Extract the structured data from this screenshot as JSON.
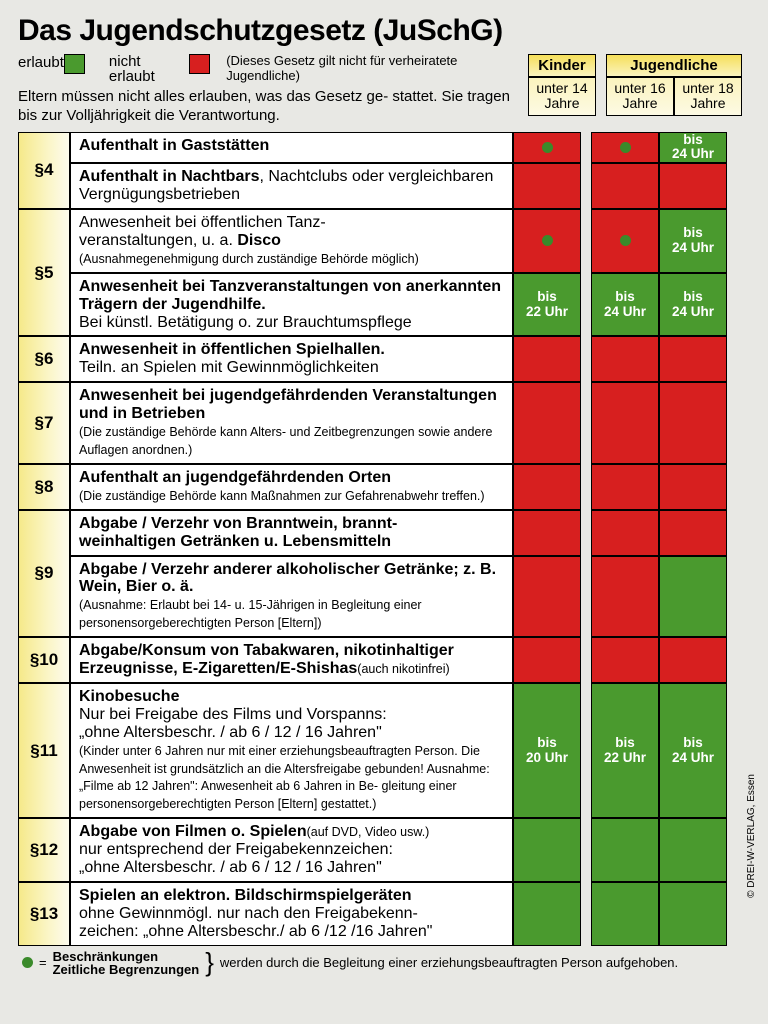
{
  "colors": {
    "allowed": "#4a9a2e",
    "notAllowed": "#d71f1f",
    "yellowHead": "#f5df5a",
    "sectionGrad": "#f5e98a"
  },
  "title": "Das Jugendschutzgesetz (JuSchG)",
  "legend": {
    "allowed": "erlaubt",
    "notAllowed": "nicht erlaubt",
    "note": "(Dieses Gesetz gilt nicht für verheiratete Jugendliche)"
  },
  "introNote": "Eltern müssen nicht alles erlauben, was das Gesetz ge- stattet. Sie tragen bis zur Volljährigkeit die Verantwortung.",
  "header": {
    "kinder": "Kinder",
    "jugendliche": "Jugendliche",
    "u14": "unter 14 Jahre",
    "u16": "unter 16 Jahre",
    "u18": "unter 18 Jahre"
  },
  "footer": {
    "dotEq": "● =",
    "l1": "Beschränkungen",
    "l2": "Zeitliche Begrenzungen",
    "rest": "werden durch die Begleitung einer erziehungsbeauftragten Person aufgehoben."
  },
  "copyright": "© DREI-W-VERLAG, Essen",
  "rows": [
    {
      "section": "§4",
      "span": 2,
      "items": [
        {
          "html": "<b>Aufenthalt in Gaststätten</b>",
          "c": [
            "dot",
            "dot",
            "g:bis 24 Uhr"
          ]
        },
        {
          "html": "<b>Aufenthalt in Nachtbars</b>, Nachtclubs oder vergleichbaren Vergnügungsbetrieben",
          "c": [
            "r",
            "r",
            "r"
          ]
        }
      ]
    },
    {
      "section": "§5",
      "span": 2,
      "items": [
        {
          "html": "Anwesenheit bei öffentlichen Tanz-<br>veranstaltungen, u. a. <b>Disco</b><br><span class='small'>(Ausnahmegenehmigung durch zuständige Behörde möglich)</span>",
          "c": [
            "dot",
            "dot",
            "g:bis 24 Uhr"
          ]
        },
        {
          "html": "<b>Anwesenheit bei Tanzveranstaltungen von anerkannten Trägern der Jugendhilfe.</b><br>Bei künstl. Betätigung o. zur Brauchtumspflege",
          "c": [
            "g:bis 22 Uhr",
            "g:bis 24 Uhr",
            "g:bis 24 Uhr"
          ]
        }
      ]
    },
    {
      "section": "§6",
      "span": 1,
      "items": [
        {
          "html": "<b>Anwesenheit in öffentlichen Spielhallen.</b><br>Teiln. an Spielen mit Gewinnmöglichkeiten",
          "c": [
            "r",
            "r",
            "r"
          ]
        }
      ]
    },
    {
      "section": "§7",
      "span": 1,
      "items": [
        {
          "html": "<b>Anwesenheit bei jugendgefährdenden Veranstaltungen und in Betrieben</b><br><span class='small'>(Die zuständige Behörde kann Alters- und Zeitbegrenzungen sowie andere Auflagen anordnen.)</span>",
          "c": [
            "r",
            "r",
            "r"
          ]
        }
      ]
    },
    {
      "section": "§8",
      "span": 1,
      "items": [
        {
          "html": "<b>Aufenthalt an jugendgefährdenden Orten</b><br><span class='small'>(Die zuständige Behörde kann Maßnahmen zur Gefahrenabwehr treffen.)</span>",
          "c": [
            "r",
            "r",
            "r"
          ]
        }
      ]
    },
    {
      "section": "§9",
      "span": 2,
      "items": [
        {
          "html": "<b>Abgabe / Verzehr von Branntwein, brannt-<br>weinhaltigen Getränken u. Lebensmitteln</b>",
          "c": [
            "r",
            "r",
            "r"
          ]
        },
        {
          "html": "<b>Abgabe / Verzehr anderer alkoholischer Getränke; z. B. Wein, Bier o. ä.</b><br><span class='small'>(Ausnahme: Erlaubt bei 14- u. 15-Jährigen in Begleitung einer personensorgeberechtigten Person [Eltern])</span>",
          "c": [
            "r",
            "r",
            "g"
          ]
        }
      ]
    },
    {
      "section": "§10",
      "span": 1,
      "items": [
        {
          "html": "<b>Abgabe/Konsum von Tabakwaren, nikotinhaltiger Erzeugnisse, E-Zigaretten/E-Shishas</b><span class='small'>(auch nikotinfrei)</span>",
          "c": [
            "r",
            "r",
            "r"
          ]
        }
      ]
    },
    {
      "section": "§11",
      "span": 1,
      "items": [
        {
          "html": "<b>Kinobesuche</b><br>Nur bei Freigabe des Films und Vorspanns:<br>„ohne Altersbeschr. / ab 6 / 12 / 16 Jahren\"<br><span class='small'>(Kinder unter 6 Jahren nur mit einer erziehungsbeauftragten Person. Die Anwesenheit ist grundsätzlich an die Altersfreigabe gebunden! Ausnahme: „Filme ab 12 Jahren\": Anwesenheit ab 6 Jahren in Be- gleitung einer personensorgeberechtigten Person [Eltern] gestattet.)</span>",
          "c": [
            "g:bis 20 Uhr",
            "g:bis 22 Uhr",
            "g:bis 24 Uhr"
          ]
        }
      ]
    },
    {
      "section": "§12",
      "span": 1,
      "items": [
        {
          "html": "<b>Abgabe von Filmen o. Spielen</b><span class='small'>(auf DVD, Video usw.)</span><br>nur entsprechend der Freigabekennzeichen:<br>„ohne Altersbeschr. / ab 6 / 12 / 16 Jahren\"",
          "c": [
            "g",
            "g",
            "g"
          ]
        }
      ]
    },
    {
      "section": "§13",
      "span": 1,
      "items": [
        {
          "html": "<b>Spielen an elektron. Bildschirmspielgeräten</b><br>ohne Gewinnmögl. nur nach den Freigabekenn-<br>zeichen: „ohne Altersbeschr./ ab 6 /12 /16 Jahren\"",
          "c": [
            "g",
            "g",
            "g"
          ]
        }
      ]
    }
  ]
}
